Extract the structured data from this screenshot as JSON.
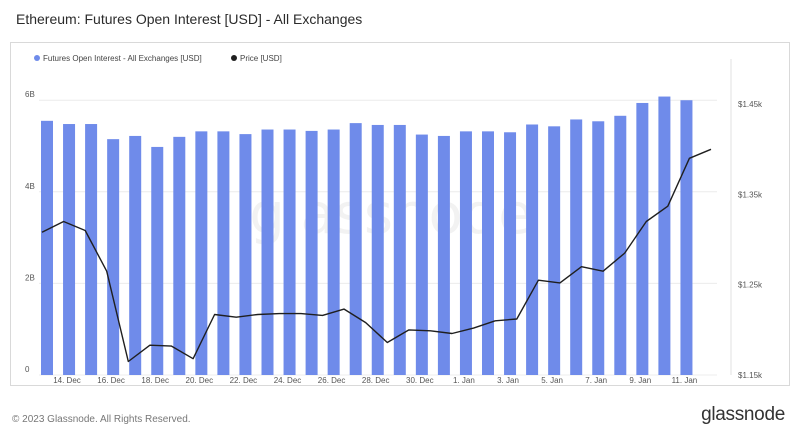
{
  "title": "Ethereum: Futures Open Interest [USD] - All Exchanges",
  "footer": {
    "copyright": "© 2023 Glassnode. All Rights Reserved.",
    "logo": "glassnode"
  },
  "watermark": "glassnode",
  "colors": {
    "bar": "#6f8bea",
    "line": "#1f1f1f",
    "grid": "#ececec",
    "axis_text": "#555555"
  },
  "chart_data": {
    "type": "bar",
    "legend_position": "top-left",
    "grid": true,
    "series": [
      {
        "name": "Futures Open Interest - All Exchanges [USD]",
        "type": "bar",
        "axis": "left",
        "values": [
          5.55,
          5.48,
          5.48,
          5.15,
          5.22,
          4.98,
          5.2,
          5.32,
          5.32,
          5.26,
          5.36,
          5.36,
          5.33,
          5.36,
          5.5,
          5.46,
          5.46,
          5.25,
          5.22,
          5.32,
          5.32,
          5.3,
          5.47,
          5.43,
          5.58,
          5.54,
          5.66,
          5.94,
          6.08,
          6.0
        ]
      },
      {
        "name": "Price [USD]",
        "type": "line",
        "axis": "right",
        "values": [
          1308,
          1320,
          1310,
          1265,
          1165,
          1183,
          1182,
          1168,
          1217,
          1214,
          1217,
          1218,
          1218,
          1216,
          1223,
          1208,
          1186,
          1200,
          1199,
          1196,
          1202,
          1210,
          1212,
          1255,
          1252,
          1270,
          1265,
          1285,
          1320,
          1337,
          1390,
          1400
        ]
      }
    ],
    "x_ticks": [
      "14. Dec",
      "16. Dec",
      "18. Dec",
      "20. Dec",
      "22. Dec",
      "24. Dec",
      "26. Dec",
      "28. Dec",
      "30. Dec",
      "1. Jan",
      "3. Jan",
      "5. Jan",
      "7. Jan",
      "9. Jan",
      "11. Jan"
    ],
    "y_left": {
      "ticks": [
        0,
        2,
        4,
        6
      ],
      "tick_labels": [
        "0",
        "2B",
        "4B",
        "6B"
      ],
      "lim": [
        0,
        6.9
      ]
    },
    "y_right": {
      "ticks": [
        1150,
        1250,
        1350,
        1450
      ],
      "tick_labels": [
        "$1.15k",
        "$1.25k",
        "$1.35k",
        "$1.45k"
      ],
      "lim": [
        1150,
        1500
      ]
    }
  }
}
